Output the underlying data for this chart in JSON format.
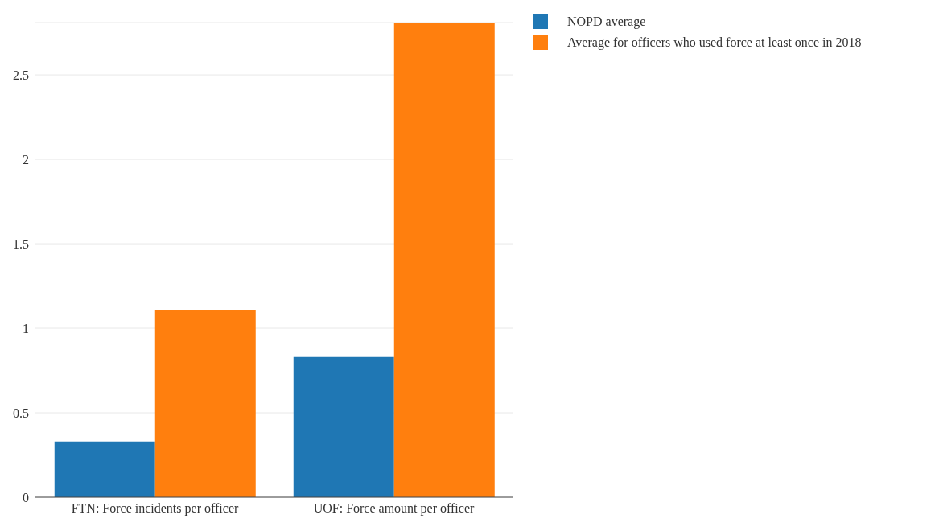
{
  "chart_data": {
    "type": "bar",
    "categories": [
      "FTN: Force incidents per officer",
      "UOF: Force amount per officer"
    ],
    "series": [
      {
        "name": "NOPD average",
        "color": "#1f77b4",
        "values": [
          0.33,
          0.83
        ]
      },
      {
        "name": "Average for officers who used force at least once in 2018",
        "color": "#ff7f0e",
        "values": [
          1.11,
          2.81
        ]
      }
    ],
    "ylim": [
      0,
      2.81
    ],
    "yticks": [
      0,
      0.5,
      1,
      1.5,
      2,
      2.5
    ],
    "grid": "y",
    "legend": "top right"
  }
}
